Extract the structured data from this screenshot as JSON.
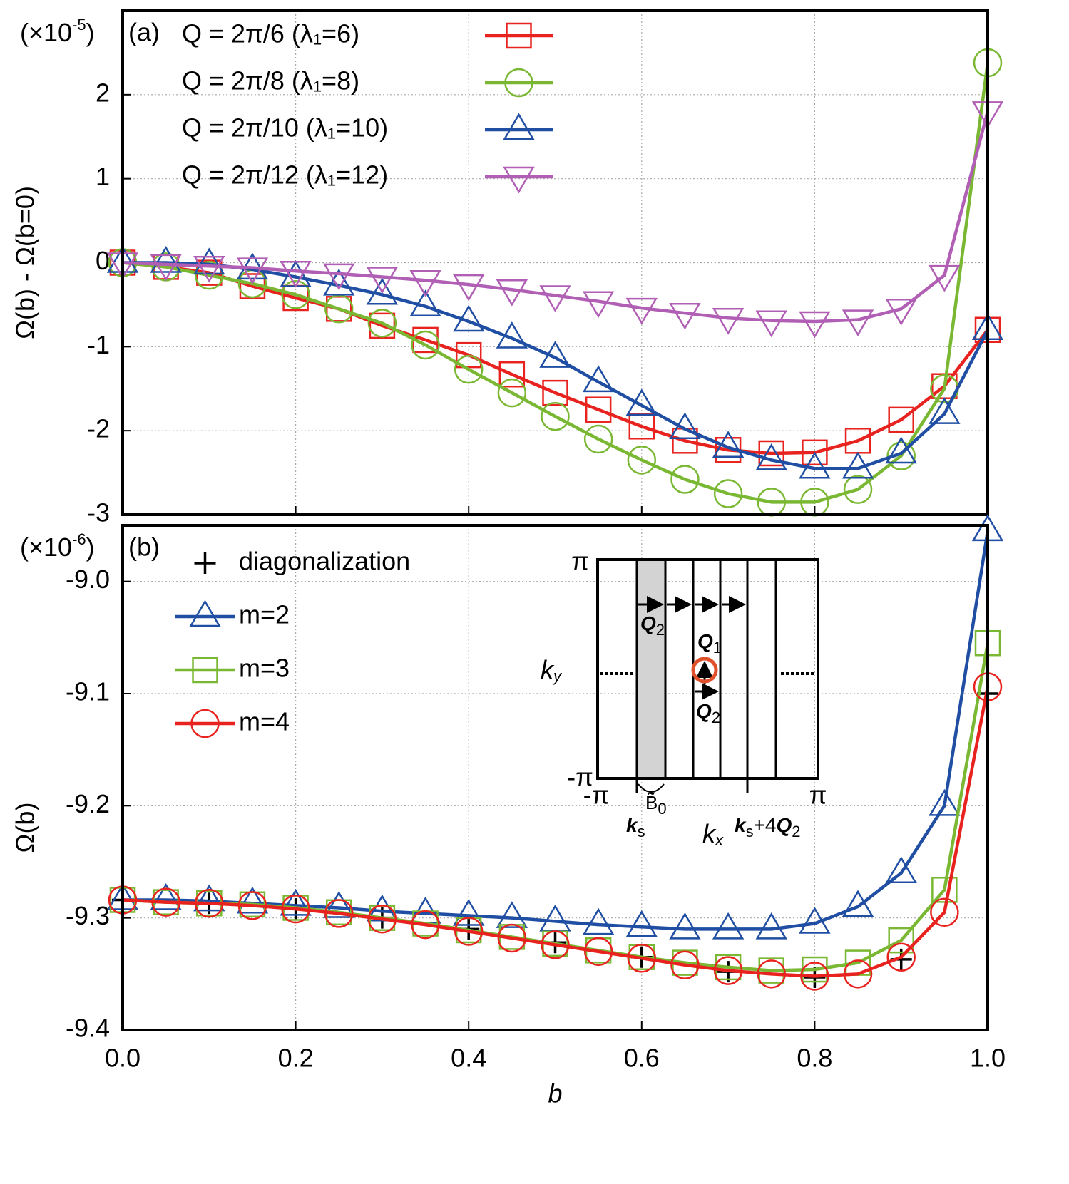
{
  "chart_data": [
    {
      "type": "line",
      "panel_label": "(a)",
      "y_multiplier": {
        "text": "(×10",
        "sup": "-5",
        "close": ")"
      },
      "ylabel": "Ω(b) - Ω(b=0)",
      "x": [
        0,
        0.05,
        0.1,
        0.15,
        0.2,
        0.25,
        0.3,
        0.35,
        0.4,
        0.45,
        0.5,
        0.55,
        0.6,
        0.65,
        0.7,
        0.75,
        0.8,
        0.85,
        0.9,
        0.95,
        1.0
      ],
      "xlim": [
        0,
        1
      ],
      "xticks": [
        0.2,
        0.4,
        0.6,
        0.8
      ],
      "ylim": [
        -3,
        3
      ],
      "yticks": [
        -3,
        -2,
        -1,
        0,
        1,
        2
      ],
      "grid": true,
      "legend": "top-left",
      "series": [
        {
          "name": "Q = 2π/6    (λ₁=6)",
          "color": "#e8231f",
          "marker": "square",
          "values": [
            0,
            -0.05,
            -0.12,
            -0.28,
            -0.42,
            -0.55,
            -0.75,
            -0.92,
            -1.1,
            -1.33,
            -1.55,
            -1.75,
            -1.95,
            -2.12,
            -2.23,
            -2.27,
            -2.26,
            -2.12,
            -1.87,
            -1.47,
            -0.8
          ]
        },
        {
          "name": "Q = 2π/8    (λ₁=8)",
          "color": "#7ab833",
          "marker": "circle",
          "values": [
            0,
            -0.05,
            -0.15,
            -0.25,
            -0.38,
            -0.55,
            -0.72,
            -0.98,
            -1.27,
            -1.55,
            -1.83,
            -2.1,
            -2.35,
            -2.58,
            -2.75,
            -2.85,
            -2.85,
            -2.7,
            -2.3,
            -1.5,
            2.38
          ]
        },
        {
          "name": "Q = 2π/10 (λ₁=10)",
          "color": "#1f4ea3",
          "marker": "triangle",
          "values": [
            0,
            0,
            -0.02,
            -0.08,
            -0.17,
            -0.27,
            -0.38,
            -0.52,
            -0.7,
            -0.9,
            -1.13,
            -1.42,
            -1.7,
            -1.98,
            -2.2,
            -2.35,
            -2.45,
            -2.45,
            -2.27,
            -1.8,
            -0.8
          ]
        },
        {
          "name": "Q = 2π/12 (λ₁=12)",
          "color": "#b05fb5",
          "marker": "triangle-down",
          "values": [
            0,
            -0.02,
            -0.04,
            -0.06,
            -0.1,
            -0.13,
            -0.17,
            -0.21,
            -0.26,
            -0.32,
            -0.39,
            -0.46,
            -0.54,
            -0.6,
            -0.66,
            -0.69,
            -0.7,
            -0.68,
            -0.55,
            -0.15,
            1.8
          ]
        }
      ]
    },
    {
      "type": "line",
      "panel_label": "(b)",
      "y_multiplier": {
        "text": "(×10",
        "sup": "-6",
        "close": ")"
      },
      "ylabel": "Ω(b)",
      "xlabel": "b",
      "x": [
        0,
        0.05,
        0.1,
        0.15,
        0.2,
        0.25,
        0.3,
        0.35,
        0.4,
        0.45,
        0.5,
        0.55,
        0.6,
        0.65,
        0.7,
        0.75,
        0.8,
        0.85,
        0.9,
        0.95,
        1.0
      ],
      "xlim": [
        0,
        1
      ],
      "xticks": [
        {
          "value": 0,
          "label": "0.0"
        },
        0.2,
        0.4,
        0.6,
        0.8,
        {
          "value": 1,
          "label": "1.0"
        }
      ],
      "ylim": [
        -9.4,
        -8.95
      ],
      "yticks": [
        -9.4,
        -9.3,
        -9.2,
        -9.1,
        {
          "value": -9,
          "label": "-9.0"
        }
      ],
      "grid": true,
      "legend": "top-left",
      "series": [
        {
          "name": "diagonalization",
          "color": "#000000",
          "marker": "plus",
          "line": false,
          "x": [
            0,
            0.1,
            0.2,
            0.3,
            0.4,
            0.5,
            0.6,
            0.7,
            0.8,
            0.9,
            1.0
          ],
          "values": [
            -9.284,
            -9.287,
            -9.292,
            -9.3,
            -9.31,
            -9.322,
            -9.335,
            -9.348,
            -9.353,
            -9.337,
            -9.1
          ]
        },
        {
          "name": "m=2",
          "color": "#1f4ea3",
          "marker": "triangle",
          "values": [
            -9.284,
            -9.284,
            -9.285,
            -9.287,
            -9.289,
            -9.291,
            -9.294,
            -9.296,
            -9.298,
            -9.3,
            -9.303,
            -9.306,
            -9.308,
            -9.31,
            -9.31,
            -9.31,
            -9.305,
            -9.29,
            -9.26,
            -9.2,
            -8.955
          ]
        },
        {
          "name": "m=3",
          "color": "#7ab833",
          "marker": "square",
          "values": [
            -9.284,
            -9.286,
            -9.287,
            -9.288,
            -9.291,
            -9.295,
            -9.3,
            -9.305,
            -9.311,
            -9.317,
            -9.323,
            -9.329,
            -9.335,
            -9.34,
            -9.344,
            -9.347,
            -9.346,
            -9.34,
            -9.32,
            -9.275,
            -9.055
          ]
        },
        {
          "name": "m=4",
          "color": "#e8231f",
          "marker": "circle",
          "values": [
            -9.284,
            -9.286,
            -9.287,
            -9.289,
            -9.292,
            -9.296,
            -9.301,
            -9.306,
            -9.312,
            -9.318,
            -9.324,
            -9.33,
            -9.336,
            -9.342,
            -9.347,
            -9.35,
            -9.352,
            -9.35,
            -9.335,
            -9.295,
            -9.094
          ]
        }
      ]
    }
  ],
  "inset": {
    "ky_top": "π",
    "ky_bottom": "-π",
    "kx_left": "-π",
    "kx_right": "π",
    "ky": {
      "main": "k",
      "sub": "y"
    },
    "kx": {
      "main": "k",
      "sub": "x"
    },
    "q2_top": {
      "main": "Q",
      "sub": "2"
    },
    "q1": {
      "main": "Q",
      "sub": "1"
    },
    "q2_mid": {
      "main": "Q",
      "sub": "2"
    },
    "ks": {
      "main": "k",
      "sub": "s"
    },
    "b0": {
      "main": "B̃",
      "sub": "0"
    },
    "ks4q2": {
      "main": "k",
      "sub": "s",
      "plus": "+4",
      "q": "Q",
      "qsub": "2"
    }
  }
}
